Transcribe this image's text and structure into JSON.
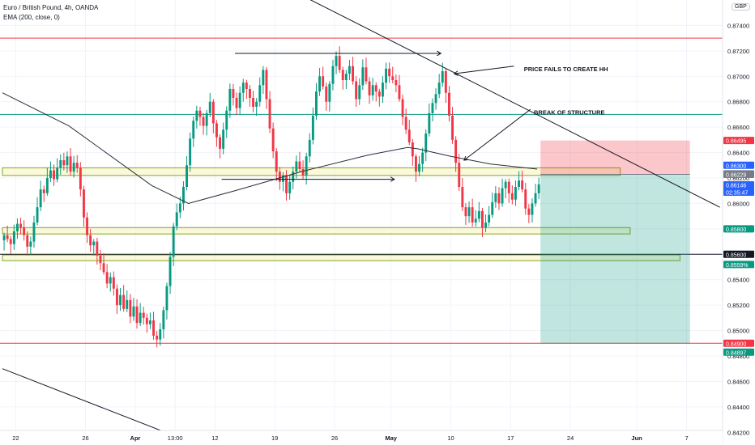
{
  "legend": {
    "symbol": "Euro / British Pound, 4h, OANDA",
    "ema": "EMA (200, close, 0)",
    "currency": "GBP"
  },
  "chart_data": {
    "type": "candlestick",
    "symbol": "EURGBP",
    "timeframe": "4h",
    "ylim": [
      0.841,
      0.876
    ],
    "price_ticks": [
      "0.87400",
      "0.87200",
      "0.87000",
      "0.86800",
      "0.86600",
      "0.86400",
      "0.86200",
      "0.86000",
      "0.85800",
      "0.85600",
      "0.85400",
      "0.85200",
      "0.85000",
      "0.84800",
      "0.84600",
      "0.84400",
      "0.84200"
    ],
    "date_ticks": [
      {
        "label": "22",
        "bar": 4
      },
      {
        "label": "26",
        "bar": 25
      },
      {
        "label": "Apr",
        "bar": 40
      },
      {
        "label": "13:00",
        "bar": 52
      },
      {
        "label": "12",
        "bar": 64
      },
      {
        "label": "19",
        "bar": 82
      },
      {
        "label": "26",
        "bar": 100
      },
      {
        "label": "May",
        "bar": 117
      },
      {
        "label": "10",
        "bar": 135
      },
      {
        "label": "17",
        "bar": 153
      },
      {
        "label": "24",
        "bar": 171
      },
      {
        "label": "Jun",
        "bar": 191
      },
      {
        "label": "7",
        "bar": 206
      }
    ],
    "total_bars": 216,
    "closes": [
      0.8575,
      0.8572,
      0.8568,
      0.8578,
      0.8584,
      0.8581,
      0.8575,
      0.8566,
      0.857,
      0.8585,
      0.8597,
      0.8611,
      0.8608,
      0.862,
      0.8626,
      0.8619,
      0.8628,
      0.8634,
      0.863,
      0.8637,
      0.8625,
      0.8632,
      0.8628,
      0.8611,
      0.8589,
      0.8575,
      0.8567,
      0.857,
      0.8559,
      0.8553,
      0.8546,
      0.8537,
      0.8542,
      0.8533,
      0.852,
      0.8528,
      0.8517,
      0.8524,
      0.8511,
      0.8519,
      0.8506,
      0.8514,
      0.851,
      0.8505,
      0.8508,
      0.8496,
      0.8493,
      0.8501,
      0.8516,
      0.8535,
      0.8558,
      0.8582,
      0.8593,
      0.86,
      0.8613,
      0.863,
      0.8651,
      0.8665,
      0.8673,
      0.8668,
      0.8661,
      0.8671,
      0.868,
      0.8663,
      0.8652,
      0.8643,
      0.8658,
      0.8673,
      0.869,
      0.8683,
      0.8675,
      0.8687,
      0.8695,
      0.869,
      0.8683,
      0.8676,
      0.868,
      0.8693,
      0.8705,
      0.8682,
      0.8659,
      0.8641,
      0.8625,
      0.8617,
      0.8622,
      0.8608,
      0.8617,
      0.8625,
      0.8633,
      0.8627,
      0.8622,
      0.8637,
      0.865,
      0.8669,
      0.8688,
      0.87,
      0.8692,
      0.868,
      0.8694,
      0.8708,
      0.8716,
      0.8705,
      0.8697,
      0.8702,
      0.8708,
      0.8696,
      0.8682,
      0.8693,
      0.8707,
      0.8696,
      0.8685,
      0.8693,
      0.8688,
      0.8684,
      0.8695,
      0.8706,
      0.87,
      0.8697,
      0.8693,
      0.8682,
      0.8668,
      0.8658,
      0.8648,
      0.8637,
      0.8625,
      0.8631,
      0.864,
      0.8655,
      0.8671,
      0.8679,
      0.8686,
      0.8695,
      0.8704,
      0.8687,
      0.8669,
      0.865,
      0.8632,
      0.8613,
      0.8597,
      0.859,
      0.8597,
      0.8585,
      0.8588,
      0.8594,
      0.8581,
      0.8585,
      0.8591,
      0.8601,
      0.8608,
      0.86,
      0.8612,
      0.8617,
      0.8608,
      0.8603,
      0.8613,
      0.8618,
      0.8611,
      0.8596,
      0.8591,
      0.86,
      0.8608,
      0.8615
    ],
    "ema200": [
      [
        0,
        0.8687
      ],
      [
        20,
        0.8661
      ],
      [
        45,
        0.8614
      ],
      [
        56,
        0.86
      ],
      [
        70,
        0.861
      ],
      [
        90,
        0.8625
      ],
      [
        110,
        0.8638
      ],
      [
        122,
        0.8644
      ],
      [
        125,
        0.8643
      ],
      [
        135,
        0.8637
      ],
      [
        147,
        0.8631
      ],
      [
        161,
        0.8627
      ]
    ],
    "horizontal_lines": [
      {
        "price": 0.873,
        "color": "#f23645",
        "label": "0.87300"
      },
      {
        "price": 0.867,
        "color": "#089981",
        "label": "0.86700"
      },
      {
        "price": 0.849,
        "color": "#f23645",
        "label": "0.84900"
      }
    ],
    "zones": [
      {
        "top": 0.8628,
        "bottom": 0.8622,
        "from": 0,
        "to": 186
      },
      {
        "top": 0.8581,
        "bottom": 0.8576,
        "from": 0,
        "to": 189
      },
      {
        "top": 0.85595,
        "bottom": 0.8555,
        "from": 0,
        "to": 204
      }
    ],
    "trendlines": [
      {
        "from": [
          80,
          0.8777
        ],
        "to": [
          216,
          0.8597
        ]
      },
      {
        "from": [
          0,
          0.847
        ],
        "to": [
          53,
          0.8416
        ]
      }
    ],
    "position": {
      "type": "short",
      "from_bar": 162,
      "to_bar": 207,
      "stop": 0.86495,
      "entry": 0.86229,
      "target": 0.84897,
      "stop_color": "#f23645",
      "target_color": "#089981"
    },
    "annotations": [
      {
        "text": "PRICE FAILS TO CREATE HH"
      },
      {
        "text": "BREAK OF STRUCTURE"
      }
    ],
    "price_labels": [
      {
        "text": "0.86495",
        "price": 0.86495,
        "bg": "#f23645"
      },
      {
        "text": "0.86300",
        "price": 0.863,
        "bg": "#2962ff"
      },
      {
        "text": "0.86233",
        "price": 0.86233,
        "bg": "#787b86"
      },
      {
        "text": "0.86229",
        "price": 0.86229,
        "bg": "#787b86"
      },
      {
        "text": "0.86146",
        "price": 0.86146,
        "bg": "#2962ff",
        "sub": "02:35:47"
      },
      {
        "text": "0.85800",
        "price": 0.858,
        "bg": "#089981"
      },
      {
        "text": "0.85600",
        "price": 0.856,
        "bg": "#131722"
      },
      {
        "text": "0.8559%",
        "price": 0.8552,
        "bg": "#089981"
      },
      {
        "text": "0.84900",
        "price": 0.849,
        "bg": "#f23645"
      },
      {
        "text": "0.84897",
        "price": 0.8483,
        "bg": "#089981"
      }
    ]
  }
}
